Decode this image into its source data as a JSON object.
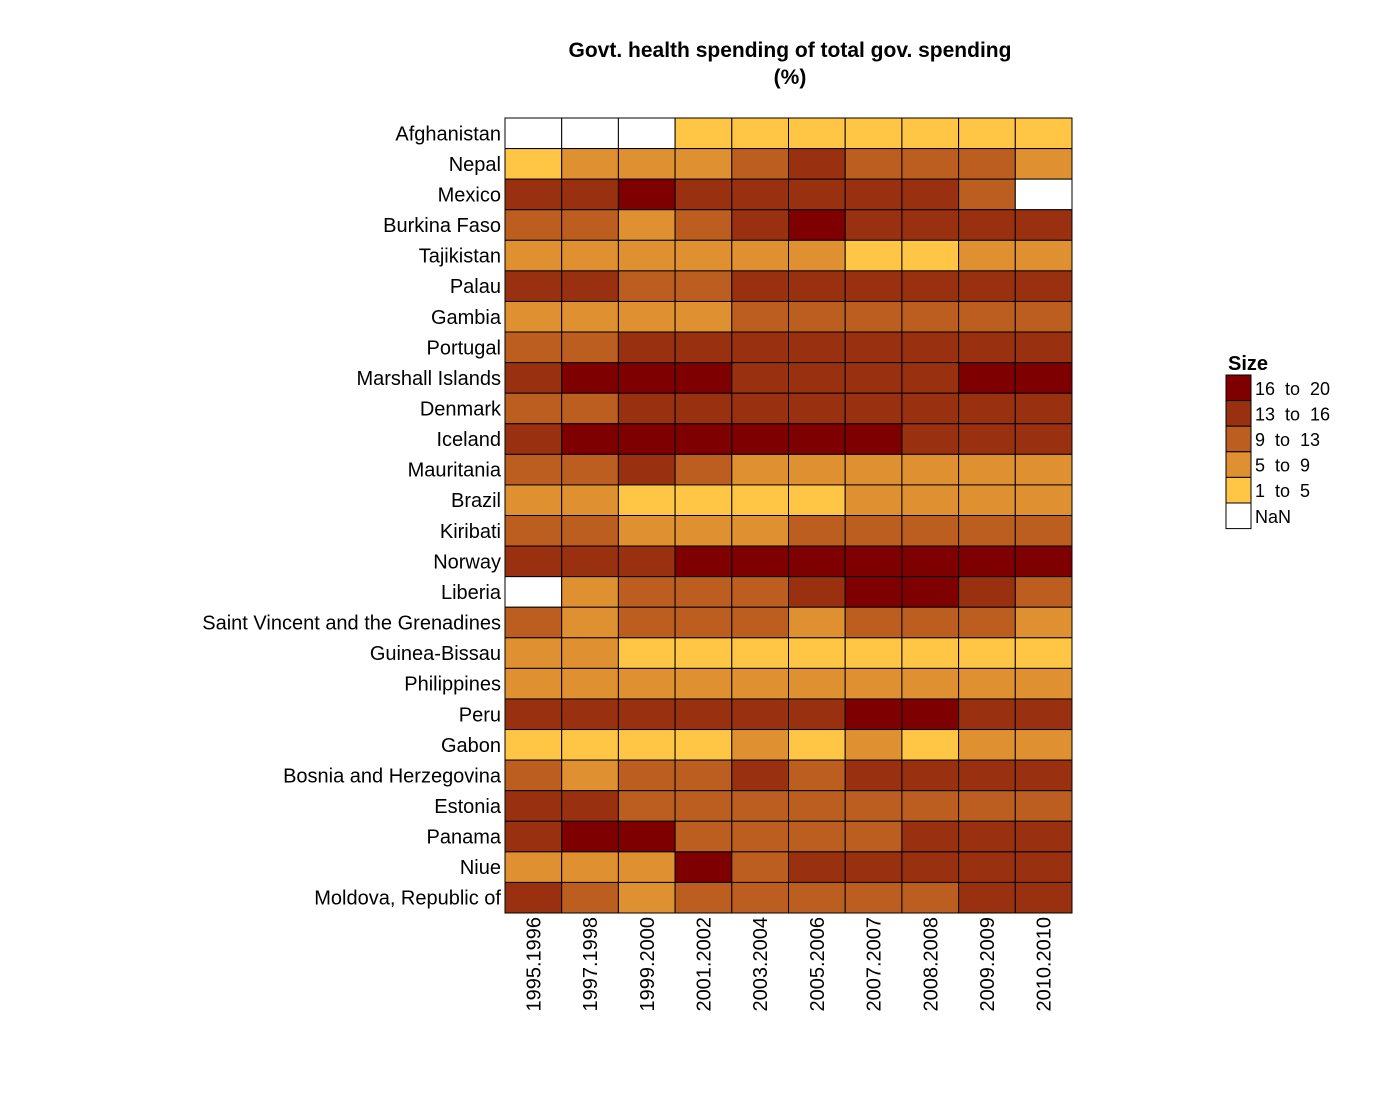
{
  "chart_data": {
    "type": "heatmap",
    "title_lines": [
      "Govt. health spending of total gov. spending",
      "(%)"
    ],
    "x_categories": [
      "1995.1996",
      "1997.1998",
      "1999.2000",
      "2001.2002",
      "2003.2004",
      "2005.2006",
      "2007.2007",
      "2008.2008",
      "2009.2009",
      "2010.2010"
    ],
    "y_categories": [
      "Afghanistan",
      "Nepal",
      "Mexico",
      "Burkina Faso",
      "Tajikistan",
      "Palau",
      "Gambia",
      "Portugal",
      "Marshall Islands",
      "Denmark",
      "Iceland",
      "Mauritania",
      "Brazil",
      "Kiribati",
      "Norway",
      "Liberia",
      "Saint Vincent and the Grenadines",
      "Guinea-Bissau",
      "Philippines",
      "Peru",
      "Gabon",
      "Bosnia and Herzegovina",
      "Estonia",
      "Panama",
      "Niue",
      "Moldova, Republic of"
    ],
    "values": [
      [
        null,
        null,
        null,
        3,
        3,
        3,
        3,
        3,
        3,
        3
      ],
      [
        3,
        7,
        7,
        7,
        11,
        14.5,
        11,
        11,
        11,
        7
      ],
      [
        14.5,
        14.5,
        18,
        14.5,
        14.5,
        14.5,
        14.5,
        14.5,
        11,
        null
      ],
      [
        11,
        11,
        7,
        11,
        14.5,
        18,
        14.5,
        14.5,
        14.5,
        14.5
      ],
      [
        7,
        7,
        7,
        7,
        7,
        7,
        3,
        3,
        7,
        7
      ],
      [
        14.5,
        14.5,
        11,
        11,
        14.5,
        14.5,
        14.5,
        14.5,
        14.5,
        14.5
      ],
      [
        7,
        7,
        7,
        7,
        11,
        11,
        11,
        11,
        11,
        11
      ],
      [
        11,
        11,
        14.5,
        14.5,
        14.5,
        14.5,
        14.5,
        14.5,
        14.5,
        14.5
      ],
      [
        14.5,
        18,
        18,
        18,
        14.5,
        14.5,
        14.5,
        14.5,
        18,
        18
      ],
      [
        11,
        11,
        14.5,
        14.5,
        14.5,
        14.5,
        14.5,
        14.5,
        14.5,
        14.5
      ],
      [
        14.5,
        18,
        18,
        18,
        18,
        18,
        18,
        14.5,
        14.5,
        14.5
      ],
      [
        11,
        11,
        14.5,
        11,
        7,
        7,
        7,
        7,
        7,
        7
      ],
      [
        7,
        7,
        3,
        3,
        3,
        3,
        7,
        7,
        7,
        7
      ],
      [
        11,
        11,
        7,
        7,
        7,
        11,
        11,
        11,
        11,
        11
      ],
      [
        14.5,
        14.5,
        14.5,
        18,
        18,
        18,
        18,
        18,
        18,
        18
      ],
      [
        null,
        7,
        11,
        11,
        11,
        14.5,
        18,
        18,
        14.5,
        11
      ],
      [
        11,
        7,
        11,
        11,
        11,
        7,
        11,
        11,
        11,
        7
      ],
      [
        7,
        7,
        3,
        3,
        3,
        3,
        3,
        3,
        3,
        3
      ],
      [
        7,
        7,
        7,
        7,
        7,
        7,
        7,
        7,
        7,
        7
      ],
      [
        14.5,
        14.5,
        14.5,
        14.5,
        14.5,
        14.5,
        18,
        18,
        14.5,
        14.5
      ],
      [
        3,
        3,
        3,
        3,
        7,
        3,
        7,
        3,
        7,
        7
      ],
      [
        11,
        7,
        11,
        11,
        14.5,
        11,
        14.5,
        14.5,
        14.5,
        14.5
      ],
      [
        14.5,
        14.5,
        11,
        11,
        11,
        11,
        11,
        11,
        11,
        11
      ],
      [
        14.5,
        18,
        18,
        11,
        11,
        11,
        11,
        14.5,
        14.5,
        14.5
      ],
      [
        7,
        7,
        7,
        18,
        11,
        14.5,
        14.5,
        14.5,
        14.5,
        14.5
      ],
      [
        14.5,
        11,
        7,
        11,
        11,
        11,
        11,
        11,
        14.5,
        14.5
      ]
    ],
    "legend": {
      "title": "Size",
      "placement": "right",
      "bins": [
        {
          "label": "16  to  20",
          "min": 16,
          "max": 20,
          "color": "#7f0000"
        },
        {
          "label": "13  to  16",
          "min": 13,
          "max": 16,
          "color": "#993010"
        },
        {
          "label": "9  to  13",
          "min": 9,
          "max": 13,
          "color": "#bb5e20"
        },
        {
          "label": "5  to  9",
          "min": 5,
          "max": 9,
          "color": "#df9030"
        },
        {
          "label": "1  to  5",
          "min": 1,
          "max": 5,
          "color": "#ffc545"
        },
        {
          "label": "NaN",
          "min": null,
          "max": null,
          "color": "#ffffff"
        }
      ]
    },
    "cell_border_color": "#000000"
  }
}
